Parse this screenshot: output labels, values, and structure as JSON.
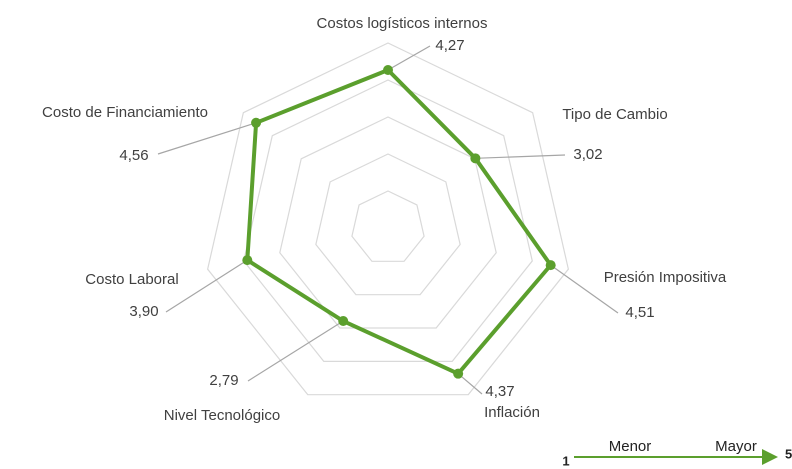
{
  "chart_data": {
    "type": "radar",
    "categories": [
      "Costos logísticos internos",
      "Tipo de Cambio",
      "Presión Impositiva",
      "Inflación",
      "Nivel Tecnológico",
      "Costo Laboral",
      "Costo de Financiamiento"
    ],
    "values": [
      4.27,
      3.02,
      4.51,
      4.37,
      2.79,
      3.9,
      4.56
    ],
    "value_labels": [
      "4,27",
      "3,02",
      "4,51",
      "4,37",
      "2,79",
      "3,90",
      "4,56"
    ],
    "color": "#5b9f2d",
    "rlim": [
      0,
      5
    ],
    "rticks": [
      1,
      2,
      3,
      4,
      5
    ],
    "grid": true,
    "scale_legend": {
      "min": 1,
      "low": "Menor",
      "high": "Mayor",
      "max": 5
    }
  }
}
